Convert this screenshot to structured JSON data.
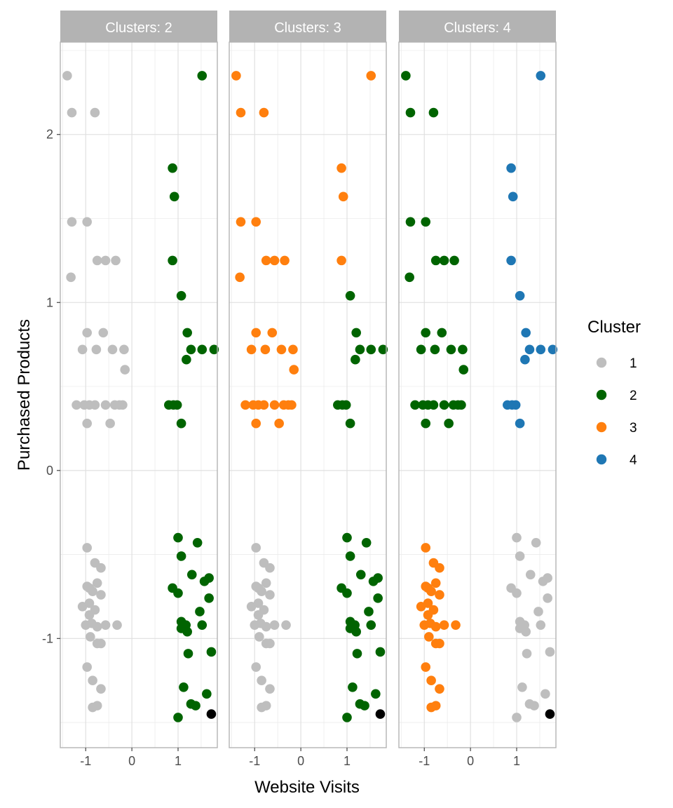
{
  "chart_data": {
    "type": "scatter",
    "xlabel": "Website Visits",
    "ylabel": "Purchased Products",
    "xlim": [
      -1.55,
      1.85
    ],
    "ylim": [
      -1.65,
      2.55
    ],
    "x_ticks": [
      -1,
      0,
      1
    ],
    "x_tick_labels": [
      "-1",
      "0",
      "1"
    ],
    "y_ticks": [
      -1,
      0,
      1,
      2
    ],
    "y_tick_labels": [
      "-1",
      "0",
      "1",
      "2"
    ],
    "grid": true,
    "legend": {
      "title": "Cluster",
      "position": "right",
      "entries": [
        {
          "label": "1",
          "color": "#bebebe"
        },
        {
          "label": "2",
          "color": "#006400"
        },
        {
          "label": "3",
          "color": "#ff7f0e"
        },
        {
          "label": "4",
          "color": "#1f77b4"
        }
      ]
    },
    "points": [
      [
        -1.4,
        2.35
      ],
      [
        -1.3,
        2.13
      ],
      [
        -0.8,
        2.13
      ],
      [
        -1.3,
        1.48
      ],
      [
        -0.97,
        1.48
      ],
      [
        -0.75,
        1.25
      ],
      [
        -0.57,
        1.25
      ],
      [
        -0.35,
        1.25
      ],
      [
        -1.32,
        1.15
      ],
      [
        -0.97,
        0.82
      ],
      [
        -0.62,
        0.82
      ],
      [
        -1.07,
        0.72
      ],
      [
        -0.77,
        0.72
      ],
      [
        -0.42,
        0.72
      ],
      [
        -0.17,
        0.72
      ],
      [
        -0.15,
        0.6
      ],
      [
        -1.2,
        0.39
      ],
      [
        -1.03,
        0.39
      ],
      [
        -0.92,
        0.39
      ],
      [
        -0.8,
        0.39
      ],
      [
        -0.57,
        0.39
      ],
      [
        -0.37,
        0.39
      ],
      [
        -0.27,
        0.39
      ],
      [
        -0.2,
        0.39
      ],
      [
        -0.97,
        0.28
      ],
      [
        -0.47,
        0.28
      ],
      [
        -0.97,
        -0.46
      ],
      [
        -0.8,
        -0.55
      ],
      [
        -0.67,
        -0.58
      ],
      [
        -0.97,
        -0.69
      ],
      [
        -0.92,
        -0.7
      ],
      [
        -0.75,
        -0.67
      ],
      [
        -0.85,
        -0.72
      ],
      [
        -0.67,
        -0.74
      ],
      [
        -1.07,
        -0.81
      ],
      [
        -0.92,
        -0.79
      ],
      [
        -0.8,
        -0.83
      ],
      [
        -0.92,
        -0.86
      ],
      [
        -1.0,
        -0.92
      ],
      [
        -0.87,
        -0.91
      ],
      [
        -0.75,
        -0.93
      ],
      [
        -0.57,
        -0.92
      ],
      [
        -0.32,
        -0.92
      ],
      [
        -0.9,
        -0.99
      ],
      [
        -0.75,
        -1.03
      ],
      [
        -0.67,
        -1.03
      ],
      [
        -0.97,
        -1.17
      ],
      [
        -0.85,
        -1.25
      ],
      [
        -0.67,
        -1.3
      ],
      [
        -0.85,
        -1.41
      ],
      [
        -0.75,
        -1.4
      ],
      [
        1.52,
        2.35
      ],
      [
        0.88,
        1.8
      ],
      [
        0.92,
        1.63
      ],
      [
        0.88,
        1.25
      ],
      [
        1.07,
        1.04
      ],
      [
        1.2,
        0.82
      ],
      [
        1.28,
        0.72
      ],
      [
        1.52,
        0.72
      ],
      [
        1.78,
        0.72
      ],
      [
        1.18,
        0.66
      ],
      [
        0.8,
        0.39
      ],
      [
        0.9,
        0.39
      ],
      [
        0.98,
        0.39
      ],
      [
        1.07,
        0.28
      ],
      [
        1.0,
        -0.4
      ],
      [
        1.42,
        -0.43
      ],
      [
        1.07,
        -0.51
      ],
      [
        0.88,
        -0.7
      ],
      [
        1.3,
        -0.62
      ],
      [
        1.57,
        -0.66
      ],
      [
        1.67,
        -0.64
      ],
      [
        1.0,
        -0.73
      ],
      [
        1.67,
        -0.76
      ],
      [
        1.47,
        -0.84
      ],
      [
        1.07,
        -0.9
      ],
      [
        1.17,
        -0.92
      ],
      [
        1.07,
        -0.94
      ],
      [
        1.52,
        -0.92
      ],
      [
        1.2,
        -0.96
      ],
      [
        1.22,
        -1.09
      ],
      [
        1.72,
        -1.08
      ],
      [
        1.12,
        -1.29
      ],
      [
        1.62,
        -1.33
      ],
      [
        1.28,
        -1.39
      ],
      [
        1.38,
        -1.4
      ],
      [
        1.0,
        -1.47
      ],
      [
        1.72,
        -1.45
      ]
    ],
    "facets": [
      {
        "label": "Clusters: 2",
        "assignments": [
          1,
          1,
          1,
          1,
          1,
          1,
          1,
          1,
          1,
          1,
          1,
          1,
          1,
          1,
          1,
          1,
          1,
          1,
          1,
          1,
          1,
          1,
          1,
          1,
          1,
          1,
          1,
          1,
          1,
          1,
          1,
          1,
          1,
          1,
          1,
          1,
          1,
          1,
          1,
          1,
          1,
          1,
          1,
          1,
          1,
          1,
          1,
          1,
          1,
          1,
          1,
          2,
          2,
          2,
          2,
          2,
          2,
          2,
          2,
          2,
          2,
          2,
          2,
          2,
          2,
          2,
          2,
          2,
          2,
          2,
          2,
          2,
          2,
          2,
          2,
          2,
          2,
          2,
          2,
          2,
          2,
          2,
          2,
          2,
          2,
          2,
          2
        ]
      },
      {
        "label": "Clusters: 3",
        "assignments": [
          3,
          3,
          3,
          3,
          3,
          3,
          3,
          3,
          3,
          3,
          3,
          3,
          3,
          3,
          3,
          3,
          3,
          3,
          3,
          3,
          3,
          3,
          3,
          3,
          3,
          3,
          1,
          1,
          1,
          1,
          1,
          1,
          1,
          1,
          1,
          1,
          1,
          1,
          1,
          1,
          1,
          1,
          1,
          1,
          1,
          1,
          1,
          1,
          1,
          1,
          1,
          3,
          3,
          3,
          3,
          2,
          2,
          2,
          2,
          2,
          2,
          2,
          2,
          2,
          2,
          2,
          2,
          2,
          2,
          2,
          2,
          2,
          2,
          2,
          2,
          2,
          2,
          2,
          2,
          2,
          2,
          2,
          2,
          2,
          2,
          2,
          2
        ]
      },
      {
        "label": "Clusters: 4",
        "assignments": [
          2,
          2,
          2,
          2,
          2,
          2,
          2,
          2,
          2,
          2,
          2,
          2,
          2,
          2,
          2,
          2,
          2,
          2,
          2,
          2,
          2,
          2,
          2,
          2,
          2,
          2,
          3,
          3,
          3,
          3,
          3,
          3,
          3,
          3,
          3,
          3,
          3,
          3,
          3,
          3,
          3,
          3,
          3,
          3,
          3,
          3,
          3,
          3,
          3,
          3,
          3,
          4,
          4,
          4,
          4,
          4,
          4,
          4,
          4,
          4,
          4,
          4,
          4,
          4,
          4,
          1,
          1,
          1,
          1,
          1,
          1,
          1,
          1,
          1,
          1,
          1,
          1,
          1,
          1,
          1,
          1,
          1,
          1,
          1,
          1,
          1,
          1
        ]
      }
    ]
  }
}
